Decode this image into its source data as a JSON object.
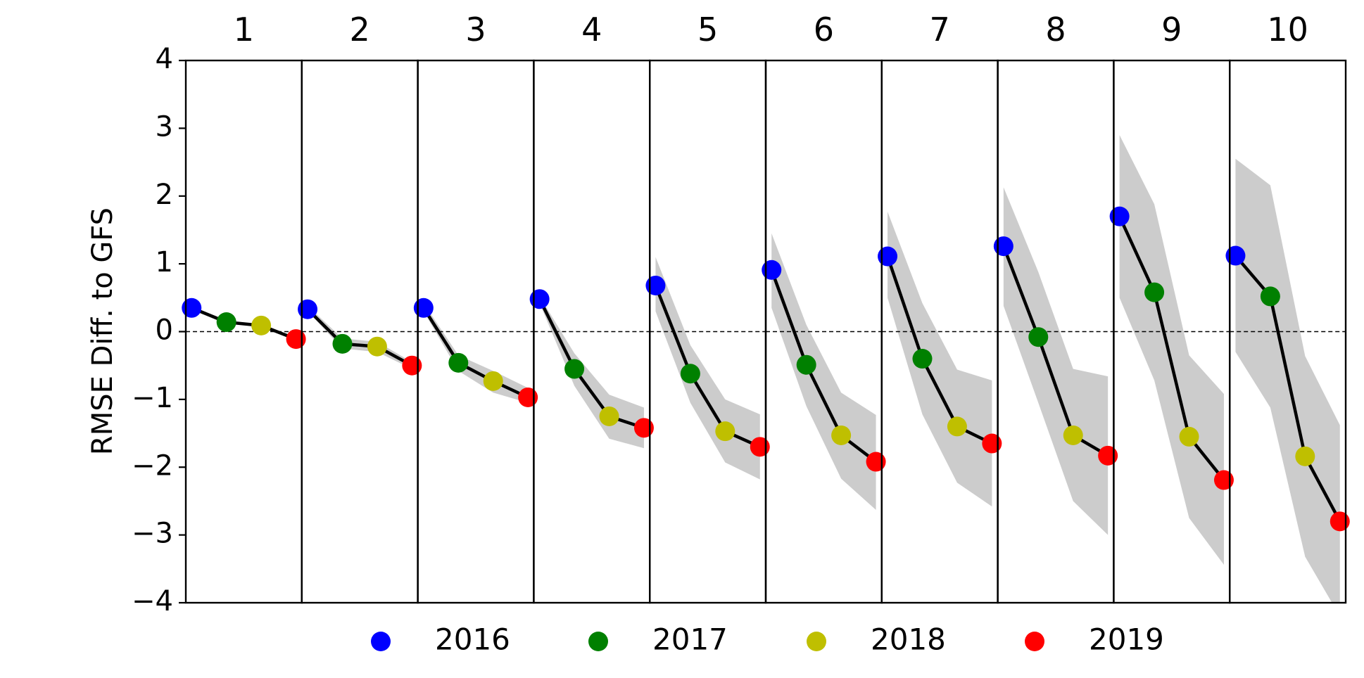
{
  "chart_data": {
    "type": "line",
    "ylabel": "RMSE Diff. to GFS",
    "ylim": [
      -4,
      4
    ],
    "yticks": [
      -4,
      -3,
      -2,
      -1,
      0,
      1,
      2,
      3,
      4
    ],
    "ytick_labels": [
      "−4",
      "−3",
      "−2",
      "−1",
      "0",
      "1",
      "2",
      "3",
      "4"
    ],
    "reference_line": 0,
    "grid": false,
    "legend_position": "bottom",
    "series_names": [
      "2016",
      "2017",
      "2018",
      "2019"
    ],
    "colors": {
      "2016": "#0000ff",
      "2017": "#008000",
      "2018": "#bfbf00",
      "2019": "#ff0000",
      "line": "#000000",
      "band": "#cccccc"
    },
    "panels": [
      {
        "title": "1",
        "values": [
          0.35,
          0.14,
          0.09,
          -0.11
        ],
        "band_lower": [
          0.35,
          0.14,
          0.09,
          -0.11
        ],
        "band_upper": [
          0.35,
          0.14,
          0.09,
          -0.11
        ]
      },
      {
        "title": "2",
        "values": [
          0.33,
          -0.18,
          -0.22,
          -0.5
        ],
        "band_lower": [
          0.3,
          -0.25,
          -0.3,
          -0.55
        ],
        "band_upper": [
          0.38,
          -0.1,
          -0.15,
          -0.45
        ]
      },
      {
        "title": "3",
        "values": [
          0.35,
          -0.46,
          -0.73,
          -0.97
        ],
        "band_lower": [
          0.3,
          -0.58,
          -0.9,
          -1.05
        ],
        "band_upper": [
          0.42,
          -0.35,
          -0.58,
          -0.83
        ]
      },
      {
        "title": "4",
        "values": [
          0.48,
          -0.55,
          -1.25,
          -1.42
        ],
        "band_lower": [
          0.42,
          -0.8,
          -1.58,
          -1.72
        ],
        "band_upper": [
          0.52,
          -0.32,
          -0.93,
          -1.12
        ]
      },
      {
        "title": "5",
        "values": [
          0.68,
          -0.62,
          -1.47,
          -1.7
        ],
        "band_lower": [
          0.3,
          -1.05,
          -1.93,
          -2.18
        ],
        "band_upper": [
          1.1,
          -0.2,
          -1.0,
          -1.22
        ]
      },
      {
        "title": "6",
        "values": [
          0.91,
          -0.49,
          -1.53,
          -1.92
        ],
        "band_lower": [
          0.35,
          -1.1,
          -2.17,
          -2.63
        ],
        "band_upper": [
          1.45,
          0.1,
          -0.9,
          -1.23
        ]
      },
      {
        "title": "7",
        "values": [
          1.11,
          -0.4,
          -1.4,
          -1.65
        ],
        "band_lower": [
          0.5,
          -1.22,
          -2.23,
          -2.58
        ],
        "band_upper": [
          1.77,
          0.42,
          -0.56,
          -0.72
        ]
      },
      {
        "title": "8",
        "values": [
          1.26,
          -0.08,
          -1.53,
          -1.83
        ],
        "band_lower": [
          0.38,
          -1.05,
          -2.5,
          -3.0
        ],
        "band_upper": [
          2.13,
          0.88,
          -0.55,
          -0.66
        ]
      },
      {
        "title": "9",
        "values": [
          1.7,
          0.58,
          -1.55,
          -2.19
        ],
        "band_lower": [
          0.5,
          -0.72,
          -2.75,
          -3.44
        ],
        "band_upper": [
          2.9,
          1.88,
          -0.35,
          -0.92
        ]
      },
      {
        "title": "10",
        "values": [
          1.12,
          0.52,
          -1.84,
          -2.8
        ],
        "band_lower": [
          -0.3,
          -1.12,
          -3.32,
          -4.2
        ],
        "band_upper": [
          2.55,
          2.16,
          -0.36,
          -1.38
        ]
      }
    ]
  }
}
